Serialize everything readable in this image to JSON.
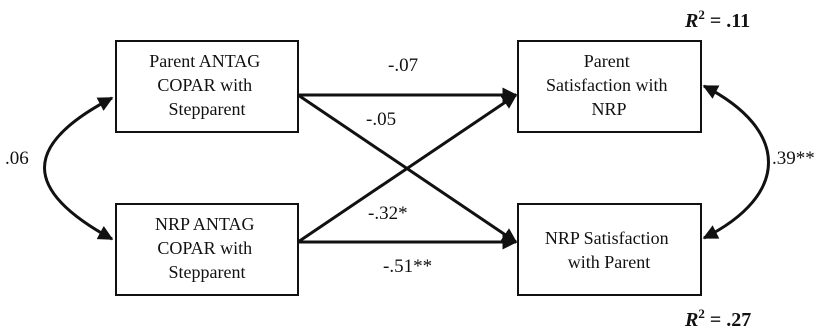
{
  "nodes": {
    "parent_antag": [
      "Parent ANTAG",
      "COPAR with",
      "Stepparent"
    ],
    "nrp_antag": [
      "NRP ANTAG",
      "COPAR with",
      "Stepparent"
    ],
    "parent_satisfaction": [
      "Parent",
      "Satisfaction with",
      "NRP"
    ],
    "nrp_satisfaction": [
      "NRP Satisfaction",
      "with Parent"
    ]
  },
  "paths": {
    "parent_antag_to_parent_satisfaction": "-.07",
    "parent_antag_to_nrp_satisfaction": "-.05",
    "nrp_antag_to_parent_satisfaction": "-.32*",
    "nrp_antag_to_nrp_satisfaction": "-.51**"
  },
  "correlations": {
    "predictors": ".06",
    "outcomes": ".39**"
  },
  "r_squared": {
    "parent_satisfaction": {
      "label": "R",
      "superscript": "2",
      "value": " = .11"
    },
    "nrp_satisfaction": {
      "label": "R",
      "superscript": "2",
      "value": " = .27"
    }
  }
}
